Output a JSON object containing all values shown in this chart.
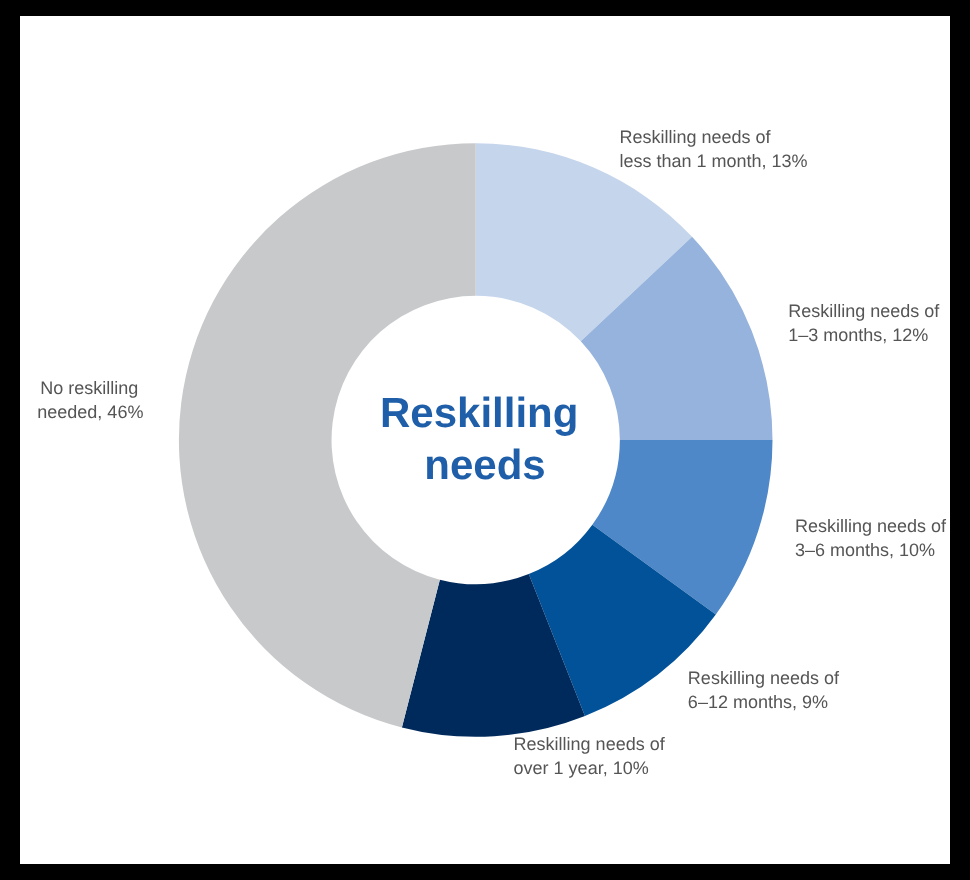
{
  "chart_data": {
    "type": "donut",
    "title": "Reskilling needs",
    "categories": [
      "Reskilling needs of less than 1 month",
      "Reskilling needs of 1–3 months",
      "Reskilling needs of 3–6 months",
      "Reskilling needs of 6–12 months",
      "Reskilling needs of over 1 year",
      "No reskilling needed"
    ],
    "values": [
      13,
      12,
      10,
      9,
      10,
      46
    ],
    "value_labels": [
      "13%",
      "12%",
      "10%",
      "9%",
      "10%",
      "46%"
    ],
    "colors": [
      "#c5d5ec",
      "#95b3dc",
      "#4f88c8",
      "#02529a",
      "#002a5c",
      "#c8c9cb"
    ],
    "legend": false
  }
}
